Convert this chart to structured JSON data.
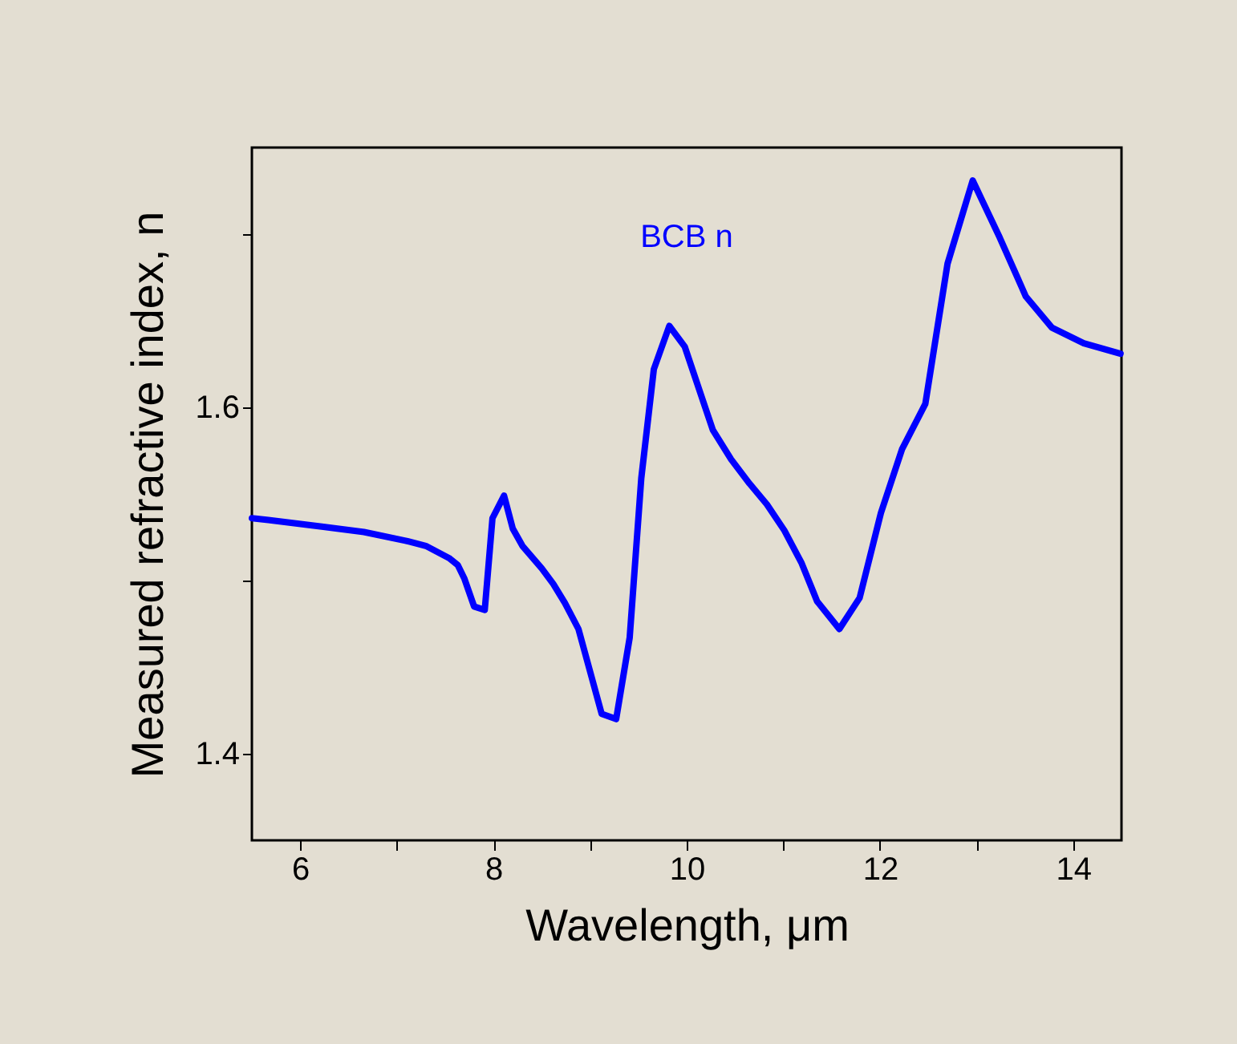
{
  "chart_data": {
    "type": "line",
    "xlabel": "Wavelength, μm",
    "ylabel": "Measured refractive index, n",
    "xlim": [
      5.5,
      14.5
    ],
    "ylim": [
      1.35,
      1.75
    ],
    "xticks": [
      6,
      {
        "value": 7,
        "label": null
      },
      8,
      {
        "value": 9,
        "label": null
      },
      10,
      {
        "value": 11,
        "label": null
      },
      12,
      {
        "value": 13,
        "label": null
      },
      14
    ],
    "yticks": [
      1.4,
      {
        "value": 1.5,
        "label": null
      },
      1.6,
      {
        "value": 1.7,
        "label": null
      }
    ],
    "grid": false,
    "marker": "none",
    "line_style": "solid",
    "series": [
      {
        "name": "BCB n",
        "color": "#0000ff",
        "x": [
          5.5,
          5.67,
          6.24,
          6.66,
          7.09,
          7.3,
          7.54,
          7.63,
          7.7,
          7.8,
          7.91,
          7.99,
          8.11,
          8.2,
          8.3,
          8.5,
          8.62,
          8.74,
          8.88,
          9.12,
          9.27,
          9.41,
          9.53,
          9.66,
          9.82,
          9.98,
          10.27,
          10.46,
          10.65,
          10.83,
          11.01,
          11.19,
          11.35,
          11.58,
          11.79,
          12.01,
          12.23,
          12.47,
          12.7,
          12.96,
          13.24,
          13.51,
          13.78,
          14.11,
          14.49
        ],
        "values": [
          1.536,
          1.535,
          1.531,
          1.528,
          1.523,
          1.52,
          1.513,
          1.509,
          1.501,
          1.485,
          1.483,
          1.536,
          1.549,
          1.53,
          1.52,
          1.507,
          1.498,
          1.487,
          1.472,
          1.423,
          1.42,
          1.467,
          1.559,
          1.622,
          1.647,
          1.635,
          1.587,
          1.57,
          1.556,
          1.544,
          1.529,
          1.51,
          1.488,
          1.472,
          1.49,
          1.539,
          1.576,
          1.602,
          1.683,
          1.731,
          1.698,
          1.664,
          1.646,
          1.637,
          1.631
        ]
      }
    ]
  }
}
